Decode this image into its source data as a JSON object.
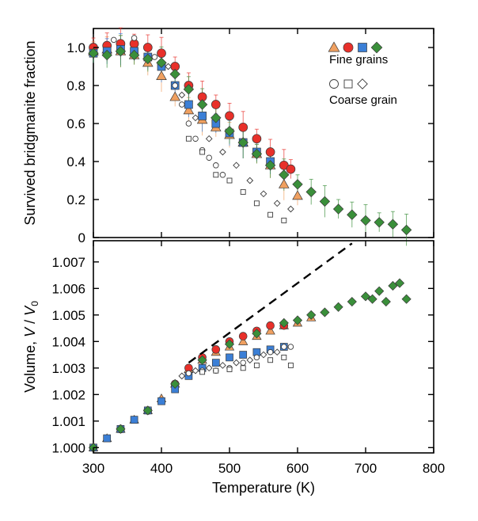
{
  "chart_data": [
    {
      "type": "scatter",
      "panel": "top",
      "title": "",
      "xlabel": "",
      "ylabel": "Survived bridgmanite fraction",
      "xlim": [
        300,
        800
      ],
      "ylim": [
        0,
        1.1
      ],
      "yticks": [
        0,
        0.2,
        0.4,
        0.6,
        0.8,
        1.0
      ],
      "ytick_labels": [
        "0",
        "0.2",
        "0.4",
        "0.6",
        "0.8",
        "1.0"
      ],
      "legend": {
        "position": "top-right",
        "entries": [
          {
            "label": "Fine grains",
            "markers": [
              "triangle",
              "circle",
              "square",
              "diamond"
            ],
            "colors": [
              "#f0a060",
              "#e8302a",
              "#3b7fd6",
              "#3a8f3a"
            ]
          },
          {
            "label": "Coarse grain",
            "markers": [
              "circle",
              "square",
              "diamond"
            ],
            "colors": [
              "#ffffff",
              "#ffffff",
              "#ffffff"
            ]
          }
        ]
      },
      "series": [
        {
          "name": "Fine grains (triangle)",
          "marker": "triangle",
          "color": "#f0a060",
          "error_bars": true,
          "x": [
            300,
            320,
            340,
            360,
            380,
            400,
            420,
            440,
            460,
            480,
            500,
            520,
            540,
            560,
            580,
            600
          ],
          "y": [
            0.98,
            0.99,
            0.98,
            0.96,
            0.92,
            0.85,
            0.74,
            0.67,
            0.62,
            0.58,
            0.54,
            0.5,
            0.44,
            0.38,
            0.28,
            0.22
          ]
        },
        {
          "name": "Fine grains (circle)",
          "marker": "circle",
          "color": "#e8302a",
          "error_bars": true,
          "x": [
            300,
            320,
            340,
            360,
            380,
            400,
            420,
            440,
            460,
            480,
            500,
            520,
            540,
            560,
            580,
            590
          ],
          "y": [
            1.0,
            1.01,
            1.02,
            1.02,
            1.0,
            0.97,
            0.9,
            0.8,
            0.74,
            0.7,
            0.64,
            0.58,
            0.52,
            0.45,
            0.38,
            0.36
          ]
        },
        {
          "name": "Fine grains (square)",
          "marker": "square",
          "color": "#3b7fd6",
          "error_bars": true,
          "x": [
            300,
            320,
            340,
            360,
            380,
            400,
            420,
            440,
            460,
            480,
            500,
            520,
            540,
            560
          ],
          "y": [
            0.97,
            0.98,
            0.99,
            0.98,
            0.95,
            0.9,
            0.8,
            0.7,
            0.64,
            0.6,
            0.55,
            0.5,
            0.45,
            0.4
          ]
        },
        {
          "name": "Fine grains (diamond)",
          "marker": "diamond",
          "color": "#3a8f3a",
          "error_bars": true,
          "x": [
            300,
            320,
            340,
            360,
            380,
            400,
            420,
            440,
            460,
            480,
            500,
            520,
            540,
            560,
            580,
            600,
            620,
            640,
            660,
            680,
            700,
            720,
            740,
            760
          ],
          "y": [
            0.97,
            0.96,
            0.98,
            0.96,
            0.94,
            0.92,
            0.86,
            0.78,
            0.7,
            0.63,
            0.56,
            0.5,
            0.44,
            0.38,
            0.33,
            0.28,
            0.24,
            0.19,
            0.15,
            0.12,
            0.09,
            0.08,
            0.07,
            0.04
          ]
        },
        {
          "name": "Coarse grain (circle)",
          "marker": "circle",
          "color": "#ffffff",
          "error_bars": false,
          "x": [
            330,
            360,
            390,
            420,
            430,
            440,
            450,
            460,
            470,
            480,
            490
          ],
          "y": [
            1.04,
            1.05,
            0.95,
            0.8,
            0.7,
            0.6,
            0.52,
            0.46,
            0.42,
            0.38,
            0.33
          ]
        },
        {
          "name": "Coarse grain (square)",
          "marker": "square",
          "color": "#ffffff",
          "error_bars": false,
          "x": [
            440,
            460,
            480,
            500,
            520,
            540,
            560,
            580
          ],
          "y": [
            0.52,
            0.45,
            0.33,
            0.3,
            0.24,
            0.18,
            0.12,
            0.09
          ]
        },
        {
          "name": "Coarse grain (diamond)",
          "marker": "diamond",
          "color": "#ffffff",
          "error_bars": false,
          "x": [
            410,
            430,
            450,
            470,
            490,
            510,
            530,
            550,
            570,
            590
          ],
          "y": [
            0.9,
            0.75,
            0.63,
            0.52,
            0.45,
            0.38,
            0.3,
            0.23,
            0.18,
            0.15
          ]
        }
      ]
    },
    {
      "type": "scatter",
      "panel": "bottom",
      "title": "",
      "xlabel": "Temperature (K)",
      "ylabel_parts": [
        "Volume, ",
        "V",
        " / ",
        "V",
        "0"
      ],
      "xlim": [
        300,
        800
      ],
      "ylim": [
        0.9998,
        1.0078
      ],
      "xticks": [
        300,
        400,
        500,
        600,
        700,
        800
      ],
      "xtick_labels": [
        "300",
        "400",
        "500",
        "600",
        "700",
        "800"
      ],
      "yticks": [
        1.0,
        1.001,
        1.002,
        1.003,
        1.004,
        1.005,
        1.006,
        1.007
      ],
      "ytick_labels": [
        "1.000",
        "1.001",
        "1.002",
        "1.003",
        "1.004",
        "1.005",
        "1.006",
        "1.007"
      ],
      "reference_line": {
        "style": "dashed",
        "x": [
          440,
          680
        ],
        "y": [
          1.0032,
          1.0077
        ]
      },
      "series": [
        {
          "name": "Fine grains (triangle)",
          "marker": "triangle",
          "color": "#f0a060",
          "x": [
            300,
            320,
            340,
            360,
            380,
            400,
            420,
            440,
            460,
            480,
            500,
            520,
            540,
            560,
            580,
            600,
            620
          ],
          "y": [
            1.0,
            1.00035,
            1.0007,
            1.00105,
            1.0014,
            1.00185,
            1.0024,
            1.00295,
            1.0033,
            1.0036,
            1.0038,
            1.004,
            1.0042,
            1.0044,
            1.0046,
            1.0047,
            1.0049
          ]
        },
        {
          "name": "Fine grains (circle)",
          "marker": "circle",
          "color": "#e8302a",
          "x": [
            300,
            340,
            380,
            420,
            440,
            460,
            480,
            500,
            520,
            540,
            560,
            580
          ],
          "y": [
            1.0,
            1.0007,
            1.0014,
            1.0024,
            1.003,
            1.0034,
            1.0037,
            1.004,
            1.0042,
            1.0044,
            1.0046,
            1.0046
          ]
        },
        {
          "name": "Fine grains (square)",
          "marker": "square",
          "color": "#3b7fd6",
          "x": [
            300,
            320,
            340,
            360,
            380,
            400,
            420,
            440,
            460,
            480,
            500,
            520,
            540,
            560,
            580
          ],
          "y": [
            1.0,
            1.00035,
            1.0007,
            1.00105,
            1.0014,
            1.00175,
            1.0022,
            1.0027,
            1.003,
            1.0032,
            1.0034,
            1.0035,
            1.0036,
            1.0037,
            1.0038
          ]
        },
        {
          "name": "Fine grains (diamond)",
          "marker": "diamond",
          "color": "#3a8f3a",
          "x": [
            300,
            340,
            380,
            420,
            460,
            500,
            540,
            580,
            600,
            620,
            640,
            660,
            680,
            700,
            710,
            720,
            730,
            740,
            750,
            760
          ],
          "y": [
            1.0,
            1.0007,
            1.0014,
            1.0024,
            1.0033,
            1.0039,
            1.0043,
            1.0047,
            1.0048,
            1.005,
            1.0051,
            1.0053,
            1.0055,
            1.0057,
            1.0056,
            1.0059,
            1.0055,
            1.0061,
            1.0062,
            1.0056
          ]
        },
        {
          "name": "Coarse grain (circle)",
          "marker": "circle",
          "color": "#ffffff",
          "x": [
            440,
            460,
            480,
            500,
            520,
            540,
            560,
            580,
            590
          ],
          "y": [
            1.0028,
            1.0029,
            1.0029,
            1.003,
            1.0032,
            1.0034,
            1.0036,
            1.0038,
            1.0038
          ]
        },
        {
          "name": "Coarse grain (square)",
          "marker": "square",
          "color": "#ffffff",
          "x": [
            460,
            480,
            500,
            520,
            540,
            560,
            580,
            590
          ],
          "y": [
            1.00285,
            1.0029,
            1.00295,
            1.003,
            1.0031,
            1.0033,
            1.0034,
            1.0031
          ]
        },
        {
          "name": "Coarse grain (diamond)",
          "marker": "diamond",
          "color": "#ffffff",
          "x": [
            430,
            450,
            470,
            490,
            510,
            530,
            550,
            570
          ],
          "y": [
            1.0027,
            1.0029,
            1.003,
            1.0031,
            1.0032,
            1.0033,
            1.0035,
            1.0036
          ]
        }
      ]
    }
  ]
}
